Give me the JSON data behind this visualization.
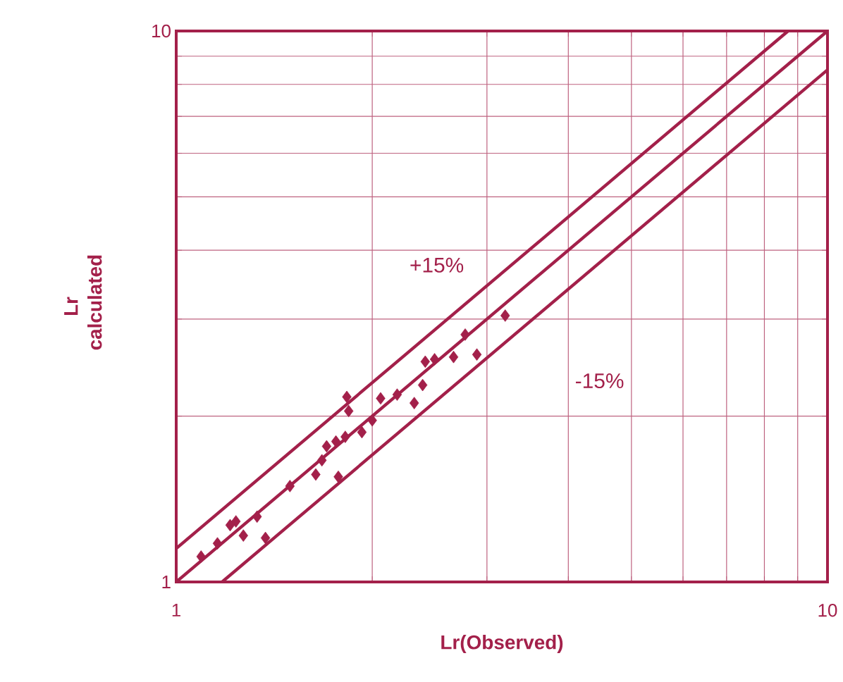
{
  "chart_data": {
    "type": "scatter",
    "xlabel": "Lr(Observed)",
    "ylabel": "Lr calculated",
    "log": "xy",
    "grid": true,
    "xlim": [
      1,
      10
    ],
    "ylim": [
      1,
      10
    ],
    "xticks": [
      1,
      {
        "value": 2,
        "label": null
      },
      {
        "value": 3,
        "label": null
      },
      {
        "value": 4,
        "label": null
      },
      {
        "value": 5,
        "label": null
      },
      {
        "value": 6,
        "label": null
      },
      {
        "value": 7,
        "label": null
      },
      {
        "value": 8,
        "label": null
      },
      {
        "value": 9,
        "label": null
      },
      10
    ],
    "yticks": [
      1,
      {
        "value": 2,
        "label": null
      },
      {
        "value": 3,
        "label": null
      },
      {
        "value": 4,
        "label": null
      },
      {
        "value": 5,
        "label": null
      },
      {
        "value": 6,
        "label": null
      },
      {
        "value": 7,
        "label": null
      },
      {
        "value": 8,
        "label": null
      },
      {
        "value": 9,
        "label": null
      },
      10
    ],
    "annotations": [
      "+15%",
      "-15%"
    ],
    "series": [
      {
        "type": "scatter",
        "marker": "diamond",
        "color": "#a3204a",
        "x": [
          1.092,
          1.157,
          1.21,
          1.235,
          1.268,
          1.331,
          1.371,
          1.495,
          1.638,
          1.674,
          1.702,
          1.759,
          1.774,
          1.818,
          1.828,
          1.84,
          1.928,
          2.0,
          2.06,
          2.184,
          2.32,
          2.39,
          2.412,
          2.493,
          2.666,
          2.778,
          2.895,
          3.2
        ],
        "values": [
          1.112,
          1.175,
          1.268,
          1.288,
          1.214,
          1.314,
          1.202,
          1.493,
          1.567,
          1.663,
          1.763,
          1.799,
          1.552,
          1.834,
          2.167,
          2.043,
          1.87,
          1.965,
          2.154,
          2.188,
          2.112,
          2.277,
          2.511,
          2.536,
          2.56,
          2.812,
          2.587,
          3.044
        ]
      },
      {
        "type": "line",
        "color": "#a3204a",
        "line_style": "solid",
        "x": [
          1,
          8.7
        ],
        "values": [
          1.15,
          10
        ]
      },
      {
        "type": "line",
        "color": "#a3204a",
        "line_style": "solid",
        "x": [
          1,
          10
        ],
        "values": [
          1,
          10
        ]
      },
      {
        "type": "line",
        "color": "#a3204a",
        "line_style": "solid",
        "x": [
          1.176,
          10
        ],
        "values": [
          1,
          8.5
        ]
      }
    ]
  }
}
